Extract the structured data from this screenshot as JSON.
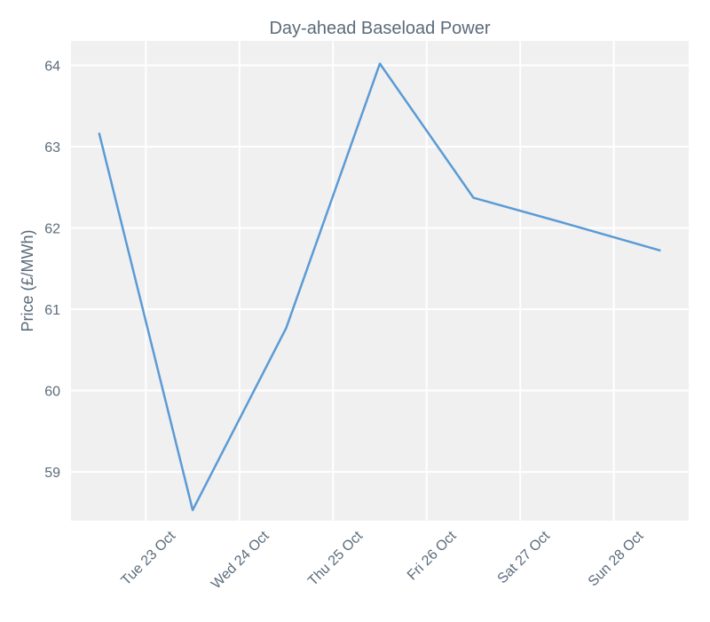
{
  "chart_data": {
    "type": "line",
    "title": "Day-ahead Baseload Power",
    "xlabel": "",
    "ylabel": "Price (£/MWh)",
    "x": [
      "2018-10-22 12:00",
      "2018-10-23 12:00",
      "2018-10-24 12:00",
      "2018-10-25 12:00",
      "2018-10-26 12:00",
      "2018-10-27 12:00",
      "2018-10-28 12:00"
    ],
    "series": [
      {
        "values": [
          63.17,
          58.53,
          60.77,
          64.02,
          62.37,
          62.05,
          61.72
        ]
      }
    ],
    "ylim": [
      58.4,
      64.3
    ],
    "yticks": [
      59,
      60,
      61,
      62,
      63,
      64
    ],
    "xticks": [
      {
        "date": "2018-10-23",
        "label": "Tue 23 Oct"
      },
      {
        "date": "2018-10-24",
        "label": "Wed 24 Oct"
      },
      {
        "date": "2018-10-25",
        "label": "Thu 25 Oct"
      },
      {
        "date": "2018-10-26",
        "label": "Fri 26 Oct"
      },
      {
        "date": "2018-10-27",
        "label": "Sat 27 Oct"
      },
      {
        "date": "2018-10-28",
        "label": "Sun 28 Oct"
      }
    ],
    "grid": true,
    "colors": {
      "line": "#5b9bd5",
      "background": "#f0f0f0",
      "grid": "#ffffff",
      "text": "#5b6b7b"
    }
  }
}
